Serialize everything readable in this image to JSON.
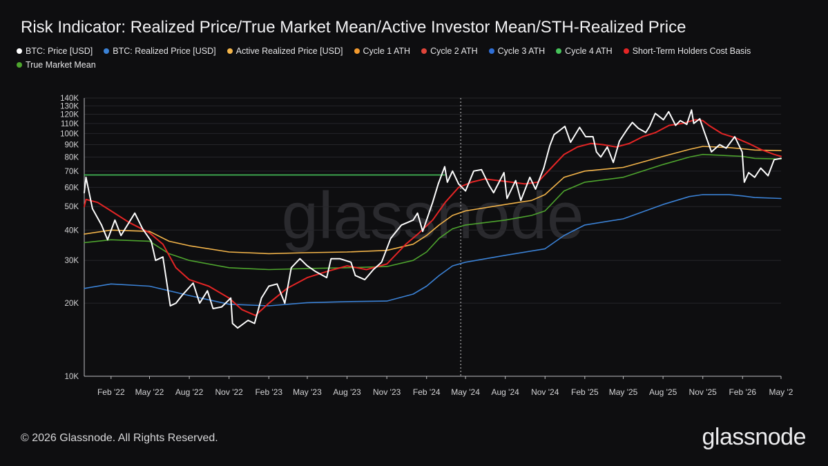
{
  "title": "Risk Indicator: Realized Price/True Market Mean/Active Investor Mean/STH-Realized Price",
  "footer": "© 2026 Glassnode. All Rights Reserved.",
  "brand": "glassnode",
  "watermark": "glassnode",
  "legend": [
    {
      "label": "BTC: Price [USD]",
      "color": "#ffffff"
    },
    {
      "label": "BTC: Realized Price [USD]",
      "color": "#3b82d6"
    },
    {
      "label": "Active Realized Price [USD]",
      "color": "#f4b54a"
    },
    {
      "label": "Cycle 1 ATH",
      "color": "#f39a2e"
    },
    {
      "label": "Cycle 2 ATH",
      "color": "#e0453a"
    },
    {
      "label": "Cycle 3 ATH",
      "color": "#2f6fd6"
    },
    {
      "label": "Cycle 4 ATH",
      "color": "#46c35a"
    },
    {
      "label": "Short-Term Holders Cost Basis",
      "color": "#e52525"
    },
    {
      "label": "True Market Mean",
      "color": "#4ea52e"
    }
  ],
  "chart_data": {
    "type": "line",
    "yscale": "log",
    "ylim": [
      10000,
      140000
    ],
    "xlim": [
      "2021-12-01",
      "2026-05-01"
    ],
    "yticks": [
      10000,
      20000,
      30000,
      40000,
      50000,
      60000,
      70000,
      80000,
      90000,
      100000,
      110000,
      120000,
      130000,
      140000
    ],
    "ytick_labels": [
      "10K",
      "20K",
      "30K",
      "40K",
      "50K",
      "60K",
      "70K",
      "80K",
      "90K",
      "100K",
      "110K",
      "120K",
      "130K",
      "140K"
    ],
    "xticks": [
      "2022-02-01",
      "2022-05-01",
      "2022-08-01",
      "2022-11-01",
      "2023-02-01",
      "2023-05-01",
      "2023-08-01",
      "2023-11-01",
      "2024-02-01",
      "2024-05-01",
      "2024-08-01",
      "2024-11-01",
      "2025-02-01",
      "2025-05-01",
      "2025-08-01",
      "2025-11-01",
      "2026-02-01",
      "2026-05-01"
    ],
    "xtick_labels": [
      "Feb '22",
      "May '22",
      "Aug '22",
      "Nov '22",
      "Feb '23",
      "May '23",
      "Aug '23",
      "Nov '23",
      "Feb '24",
      "May '24",
      "Aug '24",
      "Nov '24",
      "Feb '25",
      "May '25",
      "Aug '25",
      "Nov '25",
      "Feb '26",
      "May '2"
    ],
    "vline": "2024-04-20",
    "series": [
      {
        "name": "Cycle 4 ATH",
        "color": "#46c35a",
        "width": 1.6,
        "x": [
          "2021-12-01",
          "2024-03-14"
        ],
        "y": [
          67500,
          67500
        ]
      },
      {
        "name": "BTC: Realized Price [USD]",
        "color": "#3b82d6",
        "width": 1.6,
        "x": [
          "2021-12-01",
          "2022-02-01",
          "2022-05-01",
          "2022-08-01",
          "2022-11-01",
          "2023-02-01",
          "2023-05-01",
          "2023-08-01",
          "2023-11-01",
          "2024-01-01",
          "2024-02-01",
          "2024-03-01",
          "2024-04-01",
          "2024-05-01",
          "2024-08-01",
          "2024-11-01",
          "2024-12-15",
          "2025-02-01",
          "2025-05-01",
          "2025-08-01",
          "2025-10-01",
          "2025-11-01",
          "2026-01-01",
          "2026-02-01",
          "2026-03-01",
          "2026-05-01"
        ],
        "y": [
          23000,
          24000,
          23500,
          21500,
          19800,
          19500,
          20100,
          20300,
          20400,
          21800,
          23500,
          26000,
          28500,
          29500,
          31500,
          33500,
          38000,
          42000,
          44500,
          51000,
          55000,
          56000,
          56000,
          55300,
          54500,
          54000
        ]
      },
      {
        "name": "True Market Mean",
        "color": "#4ea52e",
        "width": 1.6,
        "x": [
          "2021-12-01",
          "2022-02-01",
          "2022-05-01",
          "2022-06-15",
          "2022-08-01",
          "2022-11-01",
          "2023-02-01",
          "2023-05-01",
          "2023-08-01",
          "2023-11-01",
          "2024-01-01",
          "2024-02-01",
          "2024-03-01",
          "2024-04-01",
          "2024-05-01",
          "2024-08-01",
          "2024-10-01",
          "2024-11-01",
          "2024-12-15",
          "2025-02-01",
          "2025-05-01",
          "2025-08-01",
          "2025-10-01",
          "2025-11-01",
          "2026-01-01",
          "2026-02-01",
          "2026-03-01",
          "2026-05-01"
        ],
        "y": [
          35500,
          36500,
          36000,
          32000,
          30000,
          28000,
          27500,
          27800,
          28000,
          28300,
          30000,
          32500,
          37000,
          40500,
          42000,
          44000,
          46000,
          48000,
          58000,
          63000,
          66000,
          74500,
          80000,
          82000,
          81000,
          80500,
          79000,
          78500
        ]
      },
      {
        "name": "Active Realized Price [USD]",
        "color": "#f4b54a",
        "width": 1.6,
        "x": [
          "2021-12-01",
          "2022-02-01",
          "2022-05-01",
          "2022-06-15",
          "2022-08-01",
          "2022-11-01",
          "2023-02-01",
          "2023-05-01",
          "2023-08-01",
          "2023-11-01",
          "2024-01-01",
          "2024-02-01",
          "2024-03-01",
          "2024-04-01",
          "2024-05-01",
          "2024-08-01",
          "2024-10-01",
          "2024-11-01",
          "2024-12-15",
          "2025-02-01",
          "2025-05-01",
          "2025-08-01",
          "2025-10-01",
          "2025-11-01",
          "2026-01-01",
          "2026-02-01",
          "2026-03-01",
          "2026-05-01"
        ],
        "y": [
          38500,
          40000,
          39500,
          36000,
          34500,
          32500,
          32000,
          32300,
          32500,
          33000,
          35000,
          38000,
          42000,
          46000,
          48000,
          51000,
          53000,
          56000,
          66000,
          70000,
          72500,
          80500,
          86000,
          88500,
          87500,
          86500,
          85500,
          85000
        ]
      },
      {
        "name": "Short-Term Holders Cost Basis",
        "color": "#e52525",
        "width": 2,
        "x": [
          "2021-12-01",
          "2021-12-05",
          "2022-01-01",
          "2022-02-01",
          "2022-03-15",
          "2022-05-01",
          "2022-06-01",
          "2022-07-01",
          "2022-08-01",
          "2022-09-15",
          "2022-11-01",
          "2022-12-01",
          "2023-01-01",
          "2023-02-01",
          "2023-03-15",
          "2023-05-01",
          "2023-06-15",
          "2023-08-01",
          "2023-09-15",
          "2023-11-01",
          "2023-12-15",
          "2024-01-15",
          "2024-02-15",
          "2024-03-15",
          "2024-04-15",
          "2024-05-15",
          "2024-06-15",
          "2024-08-01",
          "2024-09-15",
          "2024-10-15",
          "2024-11-15",
          "2024-12-15",
          "2025-01-15",
          "2025-02-15",
          "2025-03-15",
          "2025-04-15",
          "2025-05-15",
          "2025-06-15",
          "2025-07-15",
          "2025-08-15",
          "2025-09-15",
          "2025-10-15",
          "2025-11-01",
          "2025-11-15",
          "2025-12-15",
          "2026-01-15",
          "2026-02-15",
          "2026-03-15",
          "2026-04-15",
          "2026-05-01"
        ],
        "y": [
          50000,
          53500,
          52000,
          48000,
          43000,
          39000,
          35000,
          28000,
          25000,
          23500,
          21000,
          18800,
          17800,
          20000,
          23000,
          25500,
          27000,
          28500,
          27500,
          29000,
          35000,
          39000,
          44000,
          52000,
          60000,
          63000,
          65000,
          63500,
          62000,
          63000,
          72000,
          82000,
          88000,
          91000,
          90000,
          88000,
          91000,
          97000,
          101000,
          108000,
          110000,
          114000,
          113000,
          108000,
          100000,
          96000,
          91000,
          86000,
          82000,
          80500
        ]
      },
      {
        "name": "BTC: Price [USD]",
        "color": "#ffffff",
        "width": 2,
        "x": [
          "2021-12-01",
          "2021-12-05",
          "2021-12-20",
          "2022-01-10",
          "2022-01-24",
          "2022-02-10",
          "2022-02-24",
          "2022-03-28",
          "2022-04-15",
          "2022-05-05",
          "2022-05-15",
          "2022-06-01",
          "2022-06-18",
          "2022-07-01",
          "2022-07-15",
          "2022-08-10",
          "2022-08-25",
          "2022-09-12",
          "2022-09-25",
          "2022-10-15",
          "2022-11-05",
          "2022-11-09",
          "2022-11-21",
          "2022-12-15",
          "2022-12-30",
          "2023-01-15",
          "2023-02-01",
          "2023-02-20",
          "2023-03-10",
          "2023-03-25",
          "2023-04-14",
          "2023-05-01",
          "2023-05-20",
          "2023-06-15",
          "2023-06-25",
          "2023-07-15",
          "2023-08-10",
          "2023-08-20",
          "2023-09-11",
          "2023-10-01",
          "2023-10-20",
          "2023-11-10",
          "2023-12-05",
          "2024-01-01",
          "2024-01-11",
          "2024-01-23",
          "2024-02-15",
          "2024-02-28",
          "2024-03-14",
          "2024-03-20",
          "2024-04-01",
          "2024-04-15",
          "2024-05-01",
          "2024-05-20",
          "2024-06-07",
          "2024-06-25",
          "2024-07-05",
          "2024-07-29",
          "2024-08-05",
          "2024-08-25",
          "2024-09-06",
          "2024-09-27",
          "2024-10-10",
          "2024-10-29",
          "2024-11-12",
          "2024-11-22",
          "2024-12-05",
          "2024-12-17",
          "2024-12-30",
          "2025-01-20",
          "2025-02-03",
          "2025-02-20",
          "2025-02-28",
          "2025-03-10",
          "2025-03-25",
          "2025-04-08",
          "2025-04-22",
          "2025-05-10",
          "2025-05-22",
          "2025-06-05",
          "2025-06-22",
          "2025-07-01",
          "2025-07-14",
          "2025-08-02",
          "2025-08-14",
          "2025-08-30",
          "2025-09-10",
          "2025-09-25",
          "2025-10-06",
          "2025-10-11",
          "2025-10-25",
          "2025-11-05",
          "2025-11-21",
          "2025-12-10",
          "2025-12-25",
          "2026-01-14",
          "2026-01-31",
          "2026-02-05",
          "2026-02-15",
          "2026-03-01",
          "2026-03-15",
          "2026-04-01",
          "2026-04-15",
          "2026-05-01"
        ],
        "y": [
          57000,
          66000,
          49000,
          42000,
          36500,
          44000,
          38000,
          47000,
          40500,
          36000,
          30000,
          31000,
          19500,
          20000,
          21500,
          24200,
          20000,
          22500,
          19000,
          19300,
          21000,
          16500,
          15800,
          17000,
          16500,
          21000,
          23500,
          24000,
          20000,
          28000,
          30500,
          28500,
          27000,
          25500,
          30500,
          30500,
          29500,
          26000,
          25000,
          27500,
          29500,
          37000,
          42000,
          44000,
          47000,
          39500,
          52000,
          62000,
          73000,
          63000,
          70000,
          62000,
          58000,
          70000,
          71000,
          61000,
          57000,
          69000,
          54000,
          64000,
          53000,
          66000,
          59000,
          72000,
          89000,
          99000,
          103000,
          107000,
          92000,
          106000,
          97000,
          97000,
          84000,
          80000,
          88000,
          76000,
          93000,
          104000,
          111000,
          105000,
          101000,
          107000,
          121000,
          114000,
          123000,
          108000,
          113000,
          109000,
          125000,
          110000,
          115000,
          101000,
          84000,
          90000,
          87000,
          97000,
          84000,
          63000,
          69000,
          66000,
          72000,
          67000,
          78000,
          79000
        ]
      }
    ]
  }
}
